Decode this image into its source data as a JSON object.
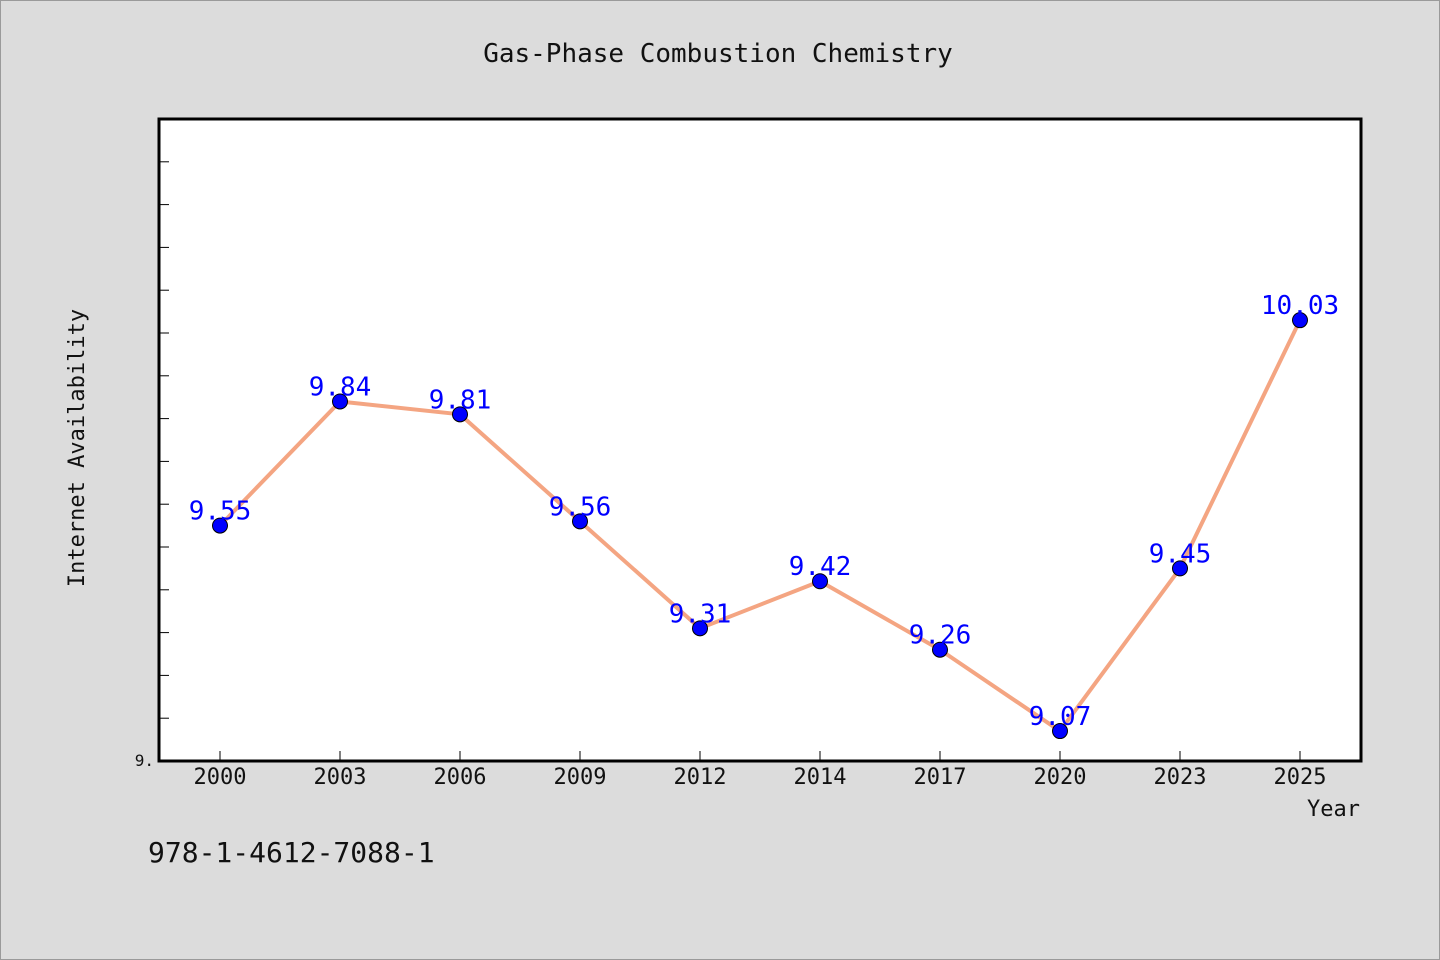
{
  "chart_data": {
    "type": "line",
    "title": "Gas-Phase Combustion Chemistry",
    "xlabel": "Year",
    "ylabel": "Internet Availability",
    "categories": [
      "2000",
      "2003",
      "2006",
      "2009",
      "2012",
      "2014",
      "2017",
      "2020",
      "2023",
      "2025"
    ],
    "series": [
      {
        "values": [
          9.55,
          9.84,
          9.81,
          9.56,
          9.31,
          9.42,
          9.26,
          9.07,
          9.45,
          10.03
        ],
        "data_labels": [
          "9.55",
          "9.84",
          "9.81",
          "9.56",
          "9.31",
          "9.42",
          "9.26",
          "9.07",
          "9.45",
          "10.03"
        ]
      }
    ],
    "ylim": [
      9.0,
      10.5
    ],
    "y_tick_labels": [
      "9."
    ],
    "grid": false,
    "legend": "none",
    "line_color": "#f4a582",
    "marker_color": "#0000ff",
    "label_color": "#0000ff",
    "background_color": "#dcdcdc",
    "plot_background": "#ffffff"
  },
  "footer": {
    "isbn": "978-1-4612-7088-1"
  }
}
